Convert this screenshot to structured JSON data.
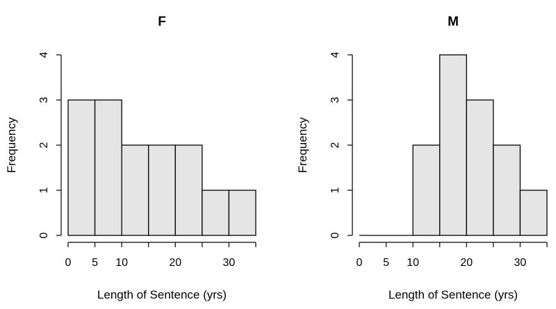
{
  "chart_data": [
    {
      "type": "bar",
      "title": "F",
      "xlabel": "Length of Sentence (yrs)",
      "ylabel": "Frequency",
      "bins": [
        [
          0,
          5
        ],
        [
          5,
          10
        ],
        [
          10,
          15
        ],
        [
          15,
          20
        ],
        [
          20,
          25
        ],
        [
          25,
          30
        ],
        [
          30,
          35
        ]
      ],
      "values": [
        3,
        3,
        2,
        2,
        2,
        1,
        1
      ],
      "xlim": [
        0,
        35
      ],
      "ylim": [
        0,
        4
      ],
      "x_ticks": [
        0,
        5,
        10,
        20,
        30
      ],
      "y_ticks": [
        0,
        1,
        2,
        3,
        4
      ],
      "bar_color": "#e5e5e5",
      "grid": false
    },
    {
      "type": "bar",
      "title": "M",
      "xlabel": "Length of Sentence (yrs)",
      "ylabel": "Frequency",
      "bins": [
        [
          0,
          5
        ],
        [
          5,
          10
        ],
        [
          10,
          15
        ],
        [
          15,
          20
        ],
        [
          20,
          25
        ],
        [
          25,
          30
        ],
        [
          30,
          35
        ]
      ],
      "values": [
        0,
        0,
        2,
        4,
        3,
        2,
        1
      ],
      "xlim": [
        0,
        35
      ],
      "ylim": [
        0,
        4
      ],
      "x_ticks": [
        0,
        5,
        10,
        20,
        30
      ],
      "y_ticks": [
        0,
        1,
        2,
        3,
        4
      ],
      "bar_color": "#e5e5e5",
      "grid": false
    }
  ]
}
